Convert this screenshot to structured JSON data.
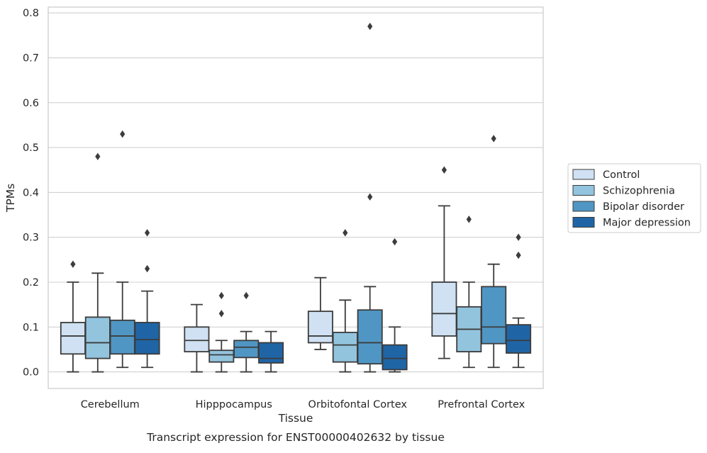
{
  "chart_data": {
    "type": "boxplot",
    "xlabel": "Tissue",
    "ylabel": "TPMs",
    "caption": "Transcript expression for ENST00000402632 by tissue",
    "ylim": [
      -0.037,
      0.813
    ],
    "yticks": [
      "0.0",
      "0.1",
      "0.2",
      "0.3",
      "0.4",
      "0.5",
      "0.6",
      "0.7",
      "0.8"
    ],
    "grid": "horizontal",
    "legend_position": "right",
    "categories": [
      "Cerebellum",
      "Hipppocampus",
      "Orbitofontal Cortex",
      "Prefrontal Cortex"
    ],
    "series": [
      {
        "name": "Control",
        "color": "#cfe1f2",
        "boxes": [
          {
            "whislo": 0.0,
            "q1": 0.04,
            "med": 0.08,
            "q3": 0.11,
            "whishi": 0.2,
            "fliers": [
              0.24
            ]
          },
          {
            "whislo": 0.0,
            "q1": 0.045,
            "med": 0.07,
            "q3": 0.1,
            "whishi": 0.15,
            "fliers": []
          },
          {
            "whislo": 0.05,
            "q1": 0.065,
            "med": 0.08,
            "q3": 0.135,
            "whishi": 0.21,
            "fliers": []
          },
          {
            "whislo": 0.03,
            "q1": 0.08,
            "med": 0.13,
            "q3": 0.2,
            "whishi": 0.37,
            "fliers": [
              0.45
            ]
          }
        ]
      },
      {
        "name": "Schizophrenia",
        "color": "#93c4de",
        "boxes": [
          {
            "whislo": 0.0,
            "q1": 0.03,
            "med": 0.065,
            "q3": 0.122,
            "whishi": 0.22,
            "fliers": [
              0.48
            ]
          },
          {
            "whislo": 0.0,
            "q1": 0.022,
            "med": 0.038,
            "q3": 0.048,
            "whishi": 0.07,
            "fliers": [
              0.13,
              0.17
            ]
          },
          {
            "whislo": 0.0,
            "q1": 0.022,
            "med": 0.06,
            "q3": 0.088,
            "whishi": 0.16,
            "fliers": [
              0.31
            ]
          },
          {
            "whislo": 0.01,
            "q1": 0.045,
            "med": 0.095,
            "q3": 0.145,
            "whishi": 0.2,
            "fliers": [
              0.34
            ]
          }
        ]
      },
      {
        "name": "Bipolar disorder",
        "color": "#5096c4",
        "boxes": [
          {
            "whislo": 0.01,
            "q1": 0.04,
            "med": 0.08,
            "q3": 0.115,
            "whishi": 0.2,
            "fliers": [
              0.53
            ]
          },
          {
            "whislo": 0.0,
            "q1": 0.032,
            "med": 0.055,
            "q3": 0.07,
            "whishi": 0.09,
            "fliers": [
              0.17
            ]
          },
          {
            "whislo": 0.0,
            "q1": 0.018,
            "med": 0.065,
            "q3": 0.138,
            "whishi": 0.19,
            "fliers": [
              0.39,
              0.77
            ]
          },
          {
            "whislo": 0.01,
            "q1": 0.063,
            "med": 0.1,
            "q3": 0.19,
            "whishi": 0.24,
            "fliers": [
              0.52
            ]
          }
        ]
      },
      {
        "name": "Major depression",
        "color": "#1f65a6",
        "boxes": [
          {
            "whislo": 0.01,
            "q1": 0.04,
            "med": 0.072,
            "q3": 0.11,
            "whishi": 0.18,
            "fliers": [
              0.23,
              0.31
            ]
          },
          {
            "whislo": 0.0,
            "q1": 0.02,
            "med": 0.03,
            "q3": 0.065,
            "whishi": 0.09,
            "fliers": []
          },
          {
            "whislo": 0.0,
            "q1": 0.005,
            "med": 0.03,
            "q3": 0.06,
            "whishi": 0.1,
            "fliers": [
              0.29
            ]
          },
          {
            "whislo": 0.01,
            "q1": 0.042,
            "med": 0.07,
            "q3": 0.105,
            "whishi": 0.12,
            "fliers": [
              0.26,
              0.3
            ]
          }
        ]
      }
    ]
  }
}
